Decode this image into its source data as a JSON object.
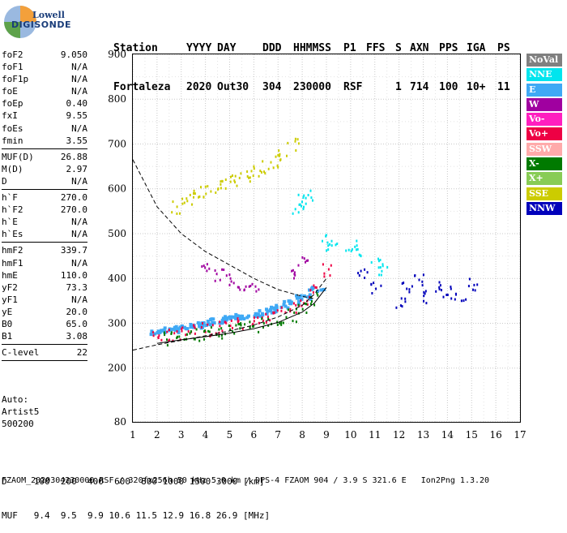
{
  "logo": {
    "top": "Lowell",
    "bottom": "DIGISONDE"
  },
  "header": {
    "labels": [
      "Station",
      "YYYY",
      "DAY",
      "DDD",
      "HHMMSS",
      "P1",
      "FFS",
      "S",
      "AXN",
      "PPS",
      "IGA",
      "PS"
    ],
    "values": [
      "Fortaleza",
      "2020",
      "Out30",
      "304",
      "230000",
      "RSF",
      "",
      "1",
      "714",
      "100",
      "10+",
      "11"
    ]
  },
  "params": {
    "group1": [
      {
        "name": "foF2",
        "value": "9.050"
      },
      {
        "name": "foF1",
        "value": "N/A"
      },
      {
        "name": "foF1p",
        "value": "N/A"
      },
      {
        "name": "foE",
        "value": "N/A"
      },
      {
        "name": "foEp",
        "value": "0.40"
      },
      {
        "name": "fxI",
        "value": "9.55"
      },
      {
        "name": "foEs",
        "value": "N/A"
      },
      {
        "name": "fmin",
        "value": "3.55"
      }
    ],
    "group2": [
      {
        "name": "MUF(D)",
        "value": "26.88"
      },
      {
        "name": "M(D)",
        "value": "2.97"
      },
      {
        "name": "D",
        "value": "N/A"
      }
    ],
    "group3": [
      {
        "name": "h`F",
        "value": "270.0"
      },
      {
        "name": "h`F2",
        "value": "270.0"
      },
      {
        "name": "h`E",
        "value": "N/A"
      },
      {
        "name": "h`Es",
        "value": "N/A"
      }
    ],
    "group4": [
      {
        "name": "hmF2",
        "value": "339.7"
      },
      {
        "name": "hmF1",
        "value": "N/A"
      },
      {
        "name": "hmE",
        "value": "110.0"
      },
      {
        "name": "yF2",
        "value": "73.3"
      },
      {
        "name": "yF1",
        "value": "N/A"
      },
      {
        "name": "yE",
        "value": "20.0"
      },
      {
        "name": "B0",
        "value": "65.0"
      },
      {
        "name": "B1",
        "value": "3.08"
      }
    ],
    "group5": [
      {
        "name": "C-level",
        "value": "22"
      }
    ]
  },
  "auto": {
    "line1": "Auto:",
    "line2": "Artist5",
    "line3": "500200"
  },
  "footer": {
    "line1": "D     100  200  400  600  800 1000 1500 3000 [km]",
    "line2": "MUF   9.4  9.5  9.9 10.6 11.5 12.9 16.8 26.9 [MHz]",
    "line3": "FZAOM_2020304230000.RSF / 320fx256h 50 kHz 5.0 km / DPS-4 FZAOM 904 / 3.9 S 321.6 E   Ion2Png 1.3.20"
  },
  "legend": [
    {
      "label": "NoVal",
      "color": "#808080"
    },
    {
      "label": "NNE",
      "color": "#00e5ee"
    },
    {
      "label": "E",
      "color": "#3fa9f5"
    },
    {
      "label": "W",
      "color": "#a000a0"
    },
    {
      "label": "Vo-",
      "color": "#ff1fbf"
    },
    {
      "label": "Vo+",
      "color": "#ee0044"
    },
    {
      "label": "SSW",
      "color": "#ffaaaa"
    },
    {
      "label": "X-",
      "color": "#007a00"
    },
    {
      "label": "X+",
      "color": "#88cc55"
    },
    {
      "label": "SSE",
      "color": "#cccc00"
    },
    {
      "label": "NNW",
      "color": "#0000bb"
    }
  ],
  "chart_data": {
    "type": "scatter",
    "xlim": [
      1,
      17
    ],
    "ylim": [
      80,
      900
    ],
    "x_ticks": [
      1,
      2,
      3,
      4,
      5,
      6,
      7,
      8,
      9,
      10,
      11,
      12,
      13,
      14,
      15,
      16,
      17
    ],
    "y_ticks": [
      80,
      200,
      300,
      400,
      500,
      600,
      700,
      800,
      900
    ],
    "grid": true,
    "legend_position": "right",
    "series": [
      {
        "name": "E",
        "color": "#3fa9f5",
        "x": [
          2.0,
          2.5,
          3.0,
          3.5,
          4.0,
          4.5,
          5.0,
          5.5,
          6.0,
          6.5,
          7.0,
          7.5,
          8.0,
          8.5
        ],
        "y": [
          283,
          288,
          293,
          298,
          303,
          308,
          313,
          318,
          324,
          330,
          338,
          348,
          362,
          380
        ]
      },
      {
        "name": "Vo+",
        "color": "#ee0044",
        "x": [
          2.0,
          2.5,
          3.0,
          3.5,
          4.0,
          4.5,
          5.0,
          5.5,
          6.0,
          6.5,
          7.0,
          7.5,
          8.0,
          8.5,
          9.0
        ],
        "y": [
          272,
          276,
          280,
          284,
          288,
          293,
          298,
          303,
          308,
          315,
          325,
          335,
          350,
          375,
          420
        ]
      },
      {
        "name": "X-",
        "color": "#007a00",
        "x": [
          2.5,
          3.0,
          3.5,
          4.0,
          4.5,
          5.0,
          5.5,
          6.0,
          6.5,
          7.0,
          7.5,
          8.0,
          8.5
        ],
        "y": [
          268,
          272,
          275,
          279,
          283,
          287,
          291,
          296,
          302,
          310,
          320,
          335,
          355
        ]
      },
      {
        "name": "W",
        "color": "#a000a0",
        "x": [
          4.0,
          4.5,
          5.0,
          5.5,
          6.0,
          7.5,
          8.0
        ],
        "y": [
          420,
          410,
          400,
          390,
          380,
          410,
          440
        ]
      },
      {
        "name": "SSE",
        "color": "#cccc00",
        "x": [
          2.8,
          3.2,
          3.6,
          4.0,
          4.4,
          4.8,
          5.2,
          5.6,
          6.0,
          6.4,
          6.8,
          7.2,
          7.6
        ],
        "y": [
          560,
          575,
          585,
          598,
          608,
          615,
          622,
          630,
          640,
          650,
          662,
          680,
          700
        ]
      },
      {
        "name": "NNE",
        "color": "#00e5ee",
        "x": [
          7.8,
          8.0,
          8.2,
          9.0,
          9.2,
          10.0,
          10.2,
          11.0,
          11.3
        ],
        "y": [
          560,
          575,
          590,
          485,
          470,
          475,
          460,
          435,
          420
        ]
      },
      {
        "name": "NNW",
        "color": "#0000bb",
        "x": [
          10.5,
          11.0,
          12.0,
          12.3,
          12.8,
          13.0,
          13.5,
          14.0,
          14.5,
          15.0
        ],
        "y": [
          410,
          380,
          350,
          380,
          400,
          360,
          380,
          370,
          360,
          390
        ]
      }
    ],
    "curves": [
      {
        "name": "",
        "style": "solid",
        "x": [
          2.0,
          3.0,
          4.0,
          5.0,
          6.0,
          7.0,
          8.0,
          8.5,
          9.0
        ],
        "y": [
          255,
          263,
          270,
          278,
          288,
          302,
          325,
          345,
          380
        ]
      },
      {
        "name": "",
        "style": "dashed",
        "x": [
          1.0,
          2.0,
          3.0,
          4.0,
          5.0,
          6.0,
          7.0,
          8.0,
          8.5
        ],
        "y": [
          665,
          560,
          500,
          460,
          430,
          400,
          375,
          360,
          355
        ]
      },
      {
        "name": "",
        "style": "dashed",
        "x": [
          1.0,
          2.0,
          3.0,
          4.0,
          5.0,
          6.0,
          7.0,
          8.0,
          8.5,
          9.0
        ],
        "y": [
          240,
          252,
          262,
          272,
          283,
          296,
          314,
          340,
          365,
          400
        ]
      }
    ]
  }
}
